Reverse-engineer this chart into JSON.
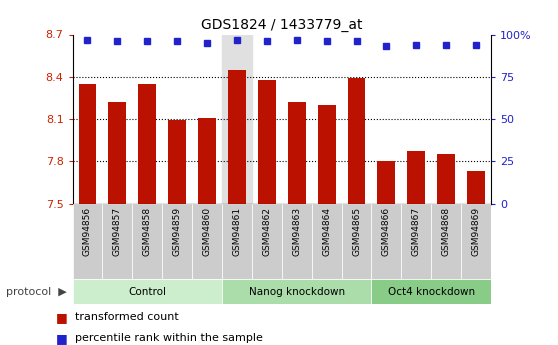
{
  "title": "GDS1824 / 1433779_at",
  "samples": [
    "GSM94856",
    "GSM94857",
    "GSM94858",
    "GSM94859",
    "GSM94860",
    "GSM94861",
    "GSM94862",
    "GSM94863",
    "GSM94864",
    "GSM94865",
    "GSM94866",
    "GSM94867",
    "GSM94868",
    "GSM94869"
  ],
  "transformed_counts": [
    8.35,
    8.22,
    8.35,
    8.09,
    8.11,
    8.45,
    8.38,
    8.22,
    8.2,
    8.39,
    7.8,
    7.87,
    7.85,
    7.73
  ],
  "percentile_ranks": [
    97,
    96,
    96,
    96,
    95,
    97,
    96,
    97,
    96,
    96,
    93,
    94,
    94,
    94
  ],
  "ylim_left": [
    7.5,
    8.7
  ],
  "ylim_right": [
    0,
    100
  ],
  "yticks_left": [
    7.5,
    7.8,
    8.1,
    8.4,
    8.7
  ],
  "yticks_right": [
    0,
    25,
    50,
    75,
    100
  ],
  "ytick_labels_left": [
    "7.5",
    "7.8",
    "8.1",
    "8.4",
    "8.7"
  ],
  "ytick_labels_right": [
    "0",
    "25",
    "50",
    "75",
    "100%"
  ],
  "bar_color": "#BB1100",
  "dot_color": "#2222CC",
  "groups": [
    {
      "label": "Control",
      "start": 0,
      "end": 5,
      "color": "#CCEECC"
    },
    {
      "label": "Nanog knockdown",
      "start": 5,
      "end": 10,
      "color": "#AADDAA"
    },
    {
      "label": "Oct4 knockdown",
      "start": 10,
      "end": 14,
      "color": "#88CC88"
    }
  ],
  "protocol_label": "protocol",
  "legend_items": [
    {
      "label": "transformed count",
      "color": "#BB1100",
      "marker": "s"
    },
    {
      "label": "percentile rank within the sample",
      "color": "#2222CC",
      "marker": "s"
    }
  ],
  "background_color": "#FFFFFF",
  "plot_bg_color": "#FFFFFF",
  "tick_color_left": "#CC2200",
  "tick_color_right": "#2222CC",
  "highlight_col": 5,
  "highlight_color": "#E0E0E0",
  "xtick_bg_color": "#CCCCCC",
  "grid_yticks": [
    7.8,
    8.1,
    8.4
  ]
}
